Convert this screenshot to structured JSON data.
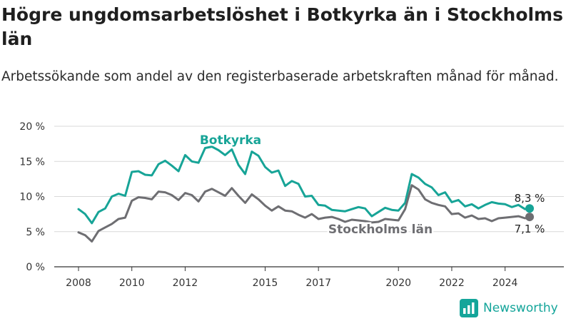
{
  "title": "Högre ungdomsarbetslöshet i Botkyrka än i Stockholms län",
  "subtitle": "Arbetssökande som andel av den registerbaserade arbetskraften månad för månad.",
  "brand": {
    "name": "Newsworthy",
    "icon": "newsworthy-logo-icon"
  },
  "colors": {
    "botkyrka": "#17a497",
    "stockholm": "#6e6e72",
    "grid": "#d9d9d9",
    "axis": "#333333"
  },
  "chart_data": {
    "type": "line",
    "title": "Högre ungdomsarbetslöshet i Botkyrka än i Stockholms län",
    "ylim": [
      0,
      20
    ],
    "xlim": [
      2008,
      2025
    ],
    "yticks": [
      0,
      5,
      10,
      15,
      20
    ],
    "ytick_labels": [
      "0 %",
      "5 %",
      "10 %",
      "15 %",
      "20 %"
    ],
    "xticks": [
      2008,
      2010,
      2012,
      2015,
      2017,
      2020,
      2022,
      2024
    ],
    "xtick_labels": [
      "2008",
      "2010",
      "2012",
      "2015",
      "2017",
      "2020",
      "2022",
      "2024"
    ],
    "grid": true,
    "legend": "inline labels",
    "series": [
      {
        "name": "Botkyrka",
        "color": "#17a497",
        "end_label": "8,3 %",
        "x": [
          2008.0,
          2008.25,
          2008.5,
          2008.75,
          2009.0,
          2009.25,
          2009.5,
          2009.75,
          2010.0,
          2010.25,
          2010.5,
          2010.75,
          2011.0,
          2011.25,
          2011.5,
          2011.75,
          2012.0,
          2012.25,
          2012.5,
          2012.75,
          2013.0,
          2013.25,
          2013.5,
          2013.75,
          2014.0,
          2014.25,
          2014.5,
          2014.75,
          2015.0,
          2015.25,
          2015.5,
          2015.75,
          2016.0,
          2016.25,
          2016.5,
          2016.75,
          2017.0,
          2017.25,
          2017.5,
          2017.75,
          2018.0,
          2018.25,
          2018.5,
          2018.75,
          2019.0,
          2019.25,
          2019.5,
          2019.75,
          2020.0,
          2020.25,
          2020.5,
          2020.75,
          2021.0,
          2021.25,
          2021.5,
          2021.75,
          2022.0,
          2022.25,
          2022.5,
          2022.75,
          2023.0,
          2023.25,
          2023.5,
          2023.75,
          2024.0,
          2024.25,
          2024.5,
          2024.75,
          2024.92
        ],
        "y": [
          8.2,
          7.5,
          6.2,
          7.8,
          8.3,
          10.0,
          10.4,
          10.1,
          13.5,
          13.6,
          13.1,
          13.0,
          14.6,
          15.1,
          14.4,
          13.6,
          15.9,
          15.0,
          14.8,
          16.9,
          17.1,
          16.6,
          15.9,
          16.7,
          14.5,
          13.2,
          16.4,
          15.8,
          14.2,
          13.4,
          13.7,
          11.5,
          12.2,
          11.8,
          10.0,
          10.1,
          8.8,
          8.7,
          8.1,
          8.0,
          7.9,
          8.2,
          8.5,
          8.3,
          7.2,
          7.8,
          8.4,
          8.1,
          8.0,
          9.1,
          13.2,
          12.7,
          11.8,
          11.3,
          10.2,
          10.6,
          9.2,
          9.5,
          8.6,
          8.9,
          8.3,
          8.8,
          9.2,
          9.0,
          8.9,
          8.5,
          8.8,
          8.2,
          8.3
        ]
      },
      {
        "name": "Stockholms län",
        "color": "#6e6e72",
        "end_label": "7,1 %",
        "x": [
          2008.0,
          2008.25,
          2008.5,
          2008.75,
          2009.0,
          2009.25,
          2009.5,
          2009.75,
          2010.0,
          2010.25,
          2010.5,
          2010.75,
          2011.0,
          2011.25,
          2011.5,
          2011.75,
          2012.0,
          2012.25,
          2012.5,
          2012.75,
          2013.0,
          2013.25,
          2013.5,
          2013.75,
          2014.0,
          2014.25,
          2014.5,
          2014.75,
          2015.0,
          2015.25,
          2015.5,
          2015.75,
          2016.0,
          2016.25,
          2016.5,
          2016.75,
          2017.0,
          2017.25,
          2017.5,
          2017.75,
          2018.0,
          2018.25,
          2018.5,
          2018.75,
          2019.0,
          2019.25,
          2019.5,
          2019.75,
          2020.0,
          2020.25,
          2020.5,
          2020.75,
          2021.0,
          2021.25,
          2021.5,
          2021.75,
          2022.0,
          2022.25,
          2022.5,
          2022.75,
          2023.0,
          2023.25,
          2023.5,
          2023.75,
          2024.0,
          2024.25,
          2024.5,
          2024.75,
          2024.92
        ],
        "y": [
          4.9,
          4.5,
          3.6,
          5.1,
          5.6,
          6.1,
          6.8,
          7.0,
          9.4,
          9.9,
          9.8,
          9.6,
          10.7,
          10.6,
          10.2,
          9.5,
          10.5,
          10.2,
          9.3,
          10.7,
          11.1,
          10.6,
          10.1,
          11.2,
          10.1,
          9.1,
          10.3,
          9.6,
          8.7,
          8.0,
          8.6,
          8.0,
          7.9,
          7.4,
          7.0,
          7.5,
          6.8,
          7.0,
          7.1,
          6.8,
          6.4,
          6.7,
          6.6,
          6.5,
          6.3,
          6.4,
          6.8,
          6.7,
          6.6,
          8.2,
          11.6,
          11.0,
          9.6,
          9.1,
          8.8,
          8.6,
          7.5,
          7.6,
          7.0,
          7.3,
          6.8,
          6.9,
          6.5,
          6.9,
          7.0,
          7.1,
          7.2,
          6.9,
          7.1
        ]
      }
    ]
  }
}
